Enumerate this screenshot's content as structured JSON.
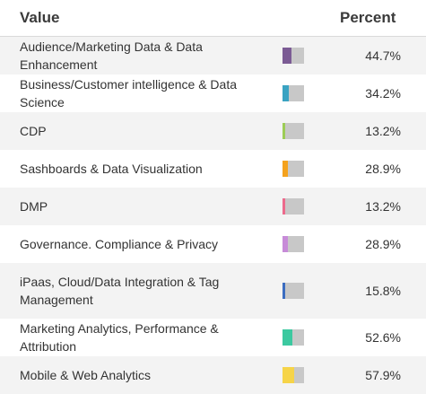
{
  "header": {
    "value_label": "Value",
    "percent_label": "Percent"
  },
  "rows": [
    {
      "label": "Audience/Marketing Data & Data Enhancement",
      "percent_text": "44.7%",
      "fraction": 0.447,
      "color": "#7b5b94"
    },
    {
      "label": "Business/Customer intelligence & Data Science",
      "percent_text": "34.2%",
      "fraction": 0.342,
      "color": "#3aa3c2"
    },
    {
      "label": "CDP",
      "percent_text": "13.2%",
      "fraction": 0.132,
      "color": "#9ccc55"
    },
    {
      "label": "Sashboards & Data Visualization",
      "percent_text": "28.9%",
      "fraction": 0.289,
      "color": "#f4a21e"
    },
    {
      "label": "DMP",
      "percent_text": "13.2%",
      "fraction": 0.132,
      "color": "#ec6a8c"
    },
    {
      "label": "Governance. Compliance & Privacy",
      "percent_text": "28.9%",
      "fraction": 0.289,
      "color": "#c78bd8"
    },
    {
      "label": "iPaas, Cloud/Data Integration & Tag Management",
      "percent_text": "15.8%",
      "fraction": 0.158,
      "color": "#3b6cc0"
    },
    {
      "label": "Marketing Analytics, Performance & Attribution",
      "percent_text": "52.6%",
      "fraction": 0.526,
      "color": "#3cc9a0"
    },
    {
      "label": "Mobile & Web Analytics",
      "percent_text": "57.9%",
      "fraction": 0.579,
      "color": "#f6d448"
    }
  ]
}
